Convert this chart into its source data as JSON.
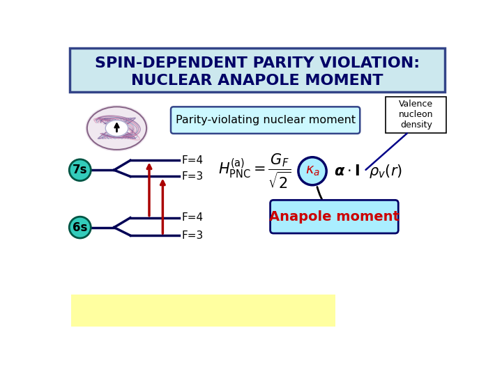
{
  "title_line1": "SPIN-DEPENDENT PARITY VIOLATION:",
  "title_line2": "NUCLEAR ANAPOLE MOMENT",
  "title_bg": "#cce8ee",
  "title_border": "#334488",
  "title_color": "#000066",
  "bg_color": "#ffffff",
  "parity_box_text": "Parity-violating nuclear moment",
  "parity_box_bg": "#ccf8ff",
  "parity_box_border": "#334488",
  "valence_text": "Valence\nnucleon\ndensity",
  "anapole_text": "Anapole moment",
  "anapole_box_bg": "#aaeeff",
  "anapole_box_border": "#000066",
  "anapole_text_color": "#cc0000",
  "label_7s": "7s",
  "label_6s": "6s",
  "badge_bg": "#33ccbb",
  "badge_border": "#005544",
  "level_color": "#000055",
  "arrow_color": "#aa0000",
  "yellow_rect_color": "#ffffa0",
  "F4_label": "F=4",
  "F3_label": "F=3",
  "kappa_circle_bg": "#aaeeff",
  "kappa_circle_border": "#000066",
  "kappa_color": "#cc0000"
}
